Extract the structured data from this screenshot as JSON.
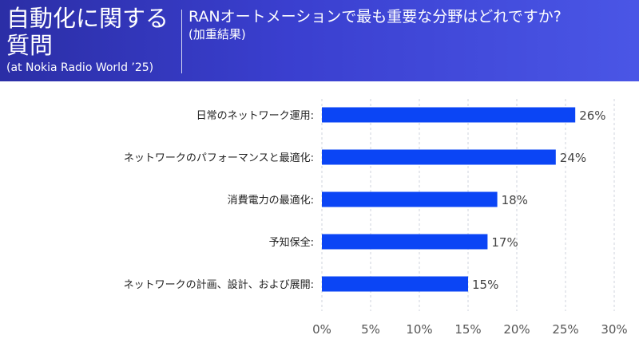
{
  "header": {
    "title": "自動化に関する質問",
    "subtitle": "(at Nokia Radio World ’25)",
    "question": "RANオートメーションで最も重要な分野はどれですか?",
    "question_note": "(加重結果)"
  },
  "chart_data": {
    "type": "bar",
    "orientation": "horizontal",
    "categories": [
      "日常のネットワーク運用:",
      "ネットワークのパフォーマンスと最適化:",
      "消費電力の最適化:",
      "予知保全:",
      "ネットワークの計画、設計、および展開:"
    ],
    "values": [
      26,
      24,
      18,
      17,
      15
    ],
    "value_labels": [
      "26%",
      "24%",
      "18%",
      "17%",
      "15%"
    ],
    "xlim": [
      0,
      30
    ],
    "xticks": [
      0,
      5,
      10,
      15,
      20,
      25,
      30
    ],
    "xtick_labels": [
      "0%",
      "5%",
      "10%",
      "15%",
      "20%",
      "25%",
      "30%"
    ],
    "grid": "vertical dashed",
    "bar_color": "#0b45f5"
  }
}
